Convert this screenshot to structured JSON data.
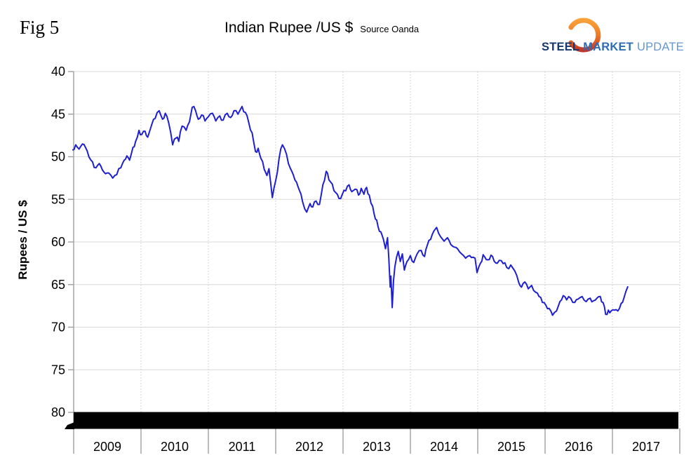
{
  "fig_label": "Fig 5",
  "header": {
    "title": "Indian Rupee /US $",
    "source": "Source Oanda"
  },
  "logo": {
    "steel": "STEEL",
    "market": "MARKET",
    "update": "UPDATE",
    "steel_color": "#16386b",
    "market_color": "#2e6db5",
    "update_color": "#6496cf",
    "swoosh_top_color": "#f9a13a",
    "swoosh_mid_color": "#ef7a24",
    "swoosh_bottom_color": "#c2382a"
  },
  "chart_data": {
    "type": "line",
    "title": "Indian Rupee /US $",
    "subtitle": "Source Oanda",
    "ylabel": "Rupees / US $",
    "xlabel": "",
    "y_ticks": [
      40,
      45,
      50,
      55,
      60,
      65,
      70,
      75,
      80
    ],
    "y_axis_inverted": true,
    "ylim": [
      40,
      80
    ],
    "x_tick_labels": [
      "2009",
      "2010",
      "2011",
      "2012",
      "2013",
      "2014",
      "2015",
      "2016",
      "2017"
    ],
    "x_range_years": [
      2009,
      2018
    ],
    "grid": "horizontal solid, vertical dotted at year boundaries",
    "legend": "none",
    "line_color": "#1f1fd2",
    "gridline_color": "#d9d9d9",
    "dotted_gridline_color": "#c8c8c8",
    "axis_color": "#a0a0a0",
    "annotations": [
      {
        "type": "solid-black-bar",
        "description": "thick black horizontal bar covering the 80 gridline across the full plot width",
        "color": "#000000",
        "at_value": 80
      }
    ],
    "series": [
      {
        "name": "Indian Rupee per US Dollar",
        "points": [
          [
            2008.98,
            49.2
          ],
          [
            2009.03,
            48.6
          ],
          [
            2009.08,
            49.1
          ],
          [
            2009.13,
            48.5
          ],
          [
            2009.2,
            49.3
          ],
          [
            2009.28,
            50.6
          ],
          [
            2009.33,
            51.3
          ],
          [
            2009.38,
            50.8
          ],
          [
            2009.45,
            51.8
          ],
          [
            2009.52,
            51.9
          ],
          [
            2009.58,
            52.5
          ],
          [
            2009.64,
            52.1
          ],
          [
            2009.7,
            51.3
          ],
          [
            2009.75,
            50.4
          ],
          [
            2009.79,
            49.9
          ],
          [
            2009.83,
            50.4
          ],
          [
            2009.88,
            48.9
          ],
          [
            2009.92,
            48.2
          ],
          [
            2009.97,
            46.9
          ],
          [
            2010.01,
            47.4
          ],
          [
            2010.06,
            47.0
          ],
          [
            2010.1,
            47.7
          ],
          [
            2010.16,
            46.2
          ],
          [
            2010.21,
            45.5
          ],
          [
            2010.27,
            44.6
          ],
          [
            2010.32,
            45.6
          ],
          [
            2010.36,
            44.9
          ],
          [
            2010.41,
            46.0
          ],
          [
            2010.47,
            48.6
          ],
          [
            2010.52,
            47.8
          ],
          [
            2010.56,
            48.2
          ],
          [
            2010.61,
            46.4
          ],
          [
            2010.67,
            46.9
          ],
          [
            2010.72,
            45.9
          ],
          [
            2010.76,
            44.2
          ],
          [
            2010.81,
            44.6
          ],
          [
            2010.85,
            45.6
          ],
          [
            2010.9,
            45.1
          ],
          [
            2010.95,
            45.8
          ],
          [
            2011.0,
            45.3
          ],
          [
            2011.06,
            44.9
          ],
          [
            2011.11,
            45.8
          ],
          [
            2011.17,
            45.2
          ],
          [
            2011.22,
            45.7
          ],
          [
            2011.28,
            44.9
          ],
          [
            2011.33,
            45.4
          ],
          [
            2011.38,
            44.6
          ],
          [
            2011.44,
            45.0
          ],
          [
            2011.5,
            44.1
          ],
          [
            2011.55,
            44.8
          ],
          [
            2011.6,
            46.0
          ],
          [
            2011.65,
            47.2
          ],
          [
            2011.7,
            49.4
          ],
          [
            2011.74,
            49.0
          ],
          [
            2011.78,
            50.2
          ],
          [
            2011.83,
            51.5
          ],
          [
            2011.87,
            52.2
          ],
          [
            2011.9,
            51.4
          ],
          [
            2011.95,
            54.8
          ],
          [
            2012.0,
            52.8
          ],
          [
            2012.05,
            50.2
          ],
          [
            2012.1,
            48.6
          ],
          [
            2012.16,
            49.7
          ],
          [
            2012.22,
            51.4
          ],
          [
            2012.26,
            52.1
          ],
          [
            2012.31,
            53.0
          ],
          [
            2012.35,
            53.9
          ],
          [
            2012.4,
            55.3
          ],
          [
            2012.46,
            56.5
          ],
          [
            2012.51,
            55.5
          ],
          [
            2012.55,
            55.9
          ],
          [
            2012.6,
            55.2
          ],
          [
            2012.65,
            55.6
          ],
          [
            2012.7,
            53.3
          ],
          [
            2012.75,
            51.7
          ],
          [
            2012.79,
            52.7
          ],
          [
            2012.84,
            53.2
          ],
          [
            2012.89,
            54.2
          ],
          [
            2012.94,
            54.9
          ],
          [
            2012.99,
            54.4
          ],
          [
            2013.04,
            54.0
          ],
          [
            2013.09,
            53.3
          ],
          [
            2013.13,
            54.1
          ],
          [
            2013.18,
            53.8
          ],
          [
            2013.23,
            54.5
          ],
          [
            2013.27,
            53.7
          ],
          [
            2013.31,
            54.4
          ],
          [
            2013.35,
            53.6
          ],
          [
            2013.39,
            54.5
          ],
          [
            2013.44,
            55.8
          ],
          [
            2013.48,
            57.3
          ],
          [
            2013.52,
            58.2
          ],
          [
            2013.56,
            58.8
          ],
          [
            2013.6,
            59.7
          ],
          [
            2013.63,
            60.8
          ],
          [
            2013.66,
            59.5
          ],
          [
            2013.68,
            62.0
          ],
          [
            2013.7,
            65.3
          ],
          [
            2013.71,
            64.0
          ],
          [
            2013.73,
            67.7
          ],
          [
            2013.75,
            64.5
          ],
          [
            2013.77,
            62.9
          ],
          [
            2013.82,
            61.1
          ],
          [
            2013.85,
            62.3
          ],
          [
            2013.88,
            61.4
          ],
          [
            2013.91,
            63.3
          ],
          [
            2013.95,
            62.3
          ],
          [
            2014.0,
            61.6
          ],
          [
            2014.05,
            62.4
          ],
          [
            2014.1,
            61.4
          ],
          [
            2014.16,
            61.0
          ],
          [
            2014.21,
            61.7
          ],
          [
            2014.25,
            60.4
          ],
          [
            2014.3,
            59.7
          ],
          [
            2014.35,
            58.7
          ],
          [
            2014.39,
            58.3
          ],
          [
            2014.45,
            59.4
          ],
          [
            2014.5,
            59.9
          ],
          [
            2014.55,
            59.5
          ],
          [
            2014.6,
            60.3
          ],
          [
            2014.65,
            60.6
          ],
          [
            2014.7,
            60.8
          ],
          [
            2014.76,
            61.4
          ],
          [
            2014.82,
            61.9
          ],
          [
            2014.88,
            61.6
          ],
          [
            2014.96,
            61.9
          ],
          [
            2014.99,
            63.6
          ],
          [
            2015.04,
            62.5
          ],
          [
            2015.08,
            61.5
          ],
          [
            2015.15,
            62.1
          ],
          [
            2015.22,
            61.7
          ],
          [
            2015.29,
            62.5
          ],
          [
            2015.35,
            62.2
          ],
          [
            2015.43,
            63.0
          ],
          [
            2015.49,
            62.7
          ],
          [
            2015.55,
            63.4
          ],
          [
            2015.61,
            64.8
          ],
          [
            2015.65,
            65.3
          ],
          [
            2015.7,
            64.7
          ],
          [
            2015.75,
            65.5
          ],
          [
            2015.8,
            65.1
          ],
          [
            2015.86,
            65.9
          ],
          [
            2015.91,
            66.4
          ],
          [
            2015.96,
            67.1
          ],
          [
            2016.01,
            67.4
          ],
          [
            2016.06,
            67.8
          ],
          [
            2016.11,
            68.6
          ],
          [
            2016.17,
            68.1
          ],
          [
            2016.22,
            67.0
          ],
          [
            2016.27,
            66.3
          ],
          [
            2016.32,
            66.8
          ],
          [
            2016.38,
            66.6
          ],
          [
            2016.44,
            67.1
          ],
          [
            2016.49,
            66.7
          ],
          [
            2016.55,
            66.4
          ],
          [
            2016.61,
            67.0
          ],
          [
            2016.67,
            66.6
          ],
          [
            2016.72,
            66.9
          ],
          [
            2016.77,
            66.6
          ],
          [
            2016.82,
            66.4
          ],
          [
            2016.86,
            67.1
          ],
          [
            2016.9,
            68.5
          ],
          [
            2016.94,
            68.0
          ],
          [
            2016.98,
            68.1
          ],
          [
            2017.03,
            68.0
          ],
          [
            2017.08,
            68.1
          ],
          [
            2017.13,
            67.2
          ],
          [
            2017.17,
            66.6
          ],
          [
            2017.2,
            65.8
          ],
          [
            2017.23,
            65.2
          ]
        ]
      }
    ]
  }
}
